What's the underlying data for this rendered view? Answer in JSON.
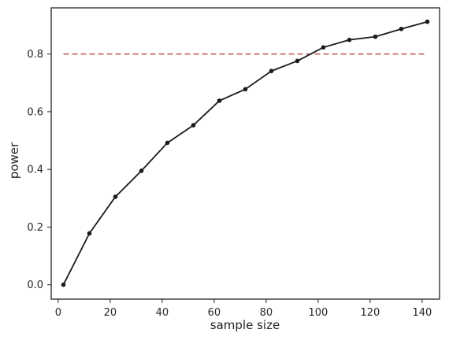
{
  "chart_data": {
    "type": "line",
    "title": "",
    "xlabel": "sample size",
    "ylabel": "power",
    "xlim": [
      -2.7,
      146.7
    ],
    "ylim": [
      -0.05,
      0.96
    ],
    "xticks": [
      0,
      20,
      40,
      60,
      80,
      100,
      120,
      140
    ],
    "yticks": [
      0.0,
      0.2,
      0.4,
      0.6,
      0.8
    ],
    "ytick_labels": [
      "0.0",
      "0.2",
      "0.4",
      "0.6",
      "0.8"
    ],
    "grid": false,
    "legend": "none",
    "series": [
      {
        "style": "solid",
        "marker": "circle",
        "color": "#1a1a1a",
        "x": [
          2,
          12,
          22,
          32,
          42,
          52,
          62,
          72,
          82,
          92,
          102,
          112,
          122,
          132,
          142
        ],
        "values": [
          0.0,
          0.178,
          0.305,
          0.395,
          0.492,
          0.553,
          0.638,
          0.678,
          0.741,
          0.776,
          0.823,
          0.849,
          0.86,
          0.887,
          0.912
        ]
      }
    ],
    "reference_line": {
      "style": "dashed",
      "color": "#c44e52",
      "y": 0.8,
      "x_range": [
        2,
        142
      ]
    }
  }
}
